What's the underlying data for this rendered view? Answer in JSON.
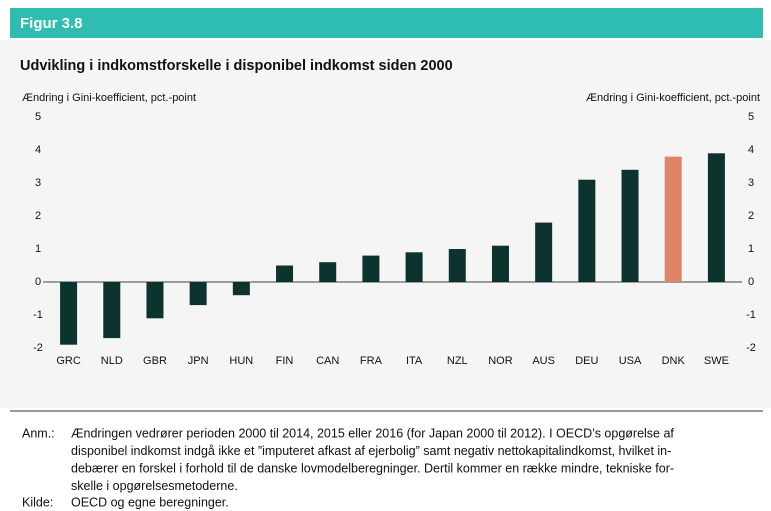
{
  "figure_label": "Figur 3.8",
  "chart_data": {
    "type": "bar",
    "title": "Udvikling i indkomstforskelle i disponibel indkomst siden 2000",
    "y_label": "Ændring i Gini-koefficient, pct.-point",
    "y2_label": "Ændring i Gini-koefficient, pct.-point",
    "categories": [
      "GRC",
      "NLD",
      "GBR",
      "JPN",
      "HUN",
      "FIN",
      "CAN",
      "FRA",
      "ITA",
      "NZL",
      "NOR",
      "AUS",
      "DEU",
      "USA",
      "DNK",
      "SWE"
    ],
    "values": [
      -1.9,
      -1.7,
      -1.1,
      -0.7,
      -0.4,
      0.5,
      0.6,
      0.8,
      0.9,
      1.0,
      1.1,
      1.8,
      3.1,
      3.4,
      3.8,
      3.9
    ],
    "colors": [
      "#0c332d",
      "#0c332d",
      "#0c332d",
      "#0c332d",
      "#0c332d",
      "#0c332d",
      "#0c332d",
      "#0c332d",
      "#0c332d",
      "#0c332d",
      "#0c332d",
      "#0c332d",
      "#0c332d",
      "#0c332d",
      "#df8466",
      "#0c332d"
    ],
    "ylim": [
      -2,
      5
    ],
    "yticks": [
      -2,
      -1,
      0,
      1,
      2,
      3,
      4,
      5
    ],
    "y2lim": [
      -2,
      5
    ],
    "y2ticks": [
      -2,
      -1,
      0,
      1,
      2,
      3,
      4,
      5
    ],
    "grid": false
  },
  "note": {
    "label": "Anm.:",
    "lines": [
      "Ændringen vedrører perioden 2000 til 2014, 2015 eller 2016 (for Japan 2000 til 2012). I OECD’s opgørelse af",
      "disponibel indkomst indgå ikke et ”imputeret afkast af ejerbolig” samt negativ nettokapitalindkomst, hvilket in-",
      "debærer en forskel i forhold til de danske lovmodelberegninger. Dertil kommer en række mindre, tekniske for-",
      "skelle i opgørelsesmetoderne."
    ]
  },
  "source": {
    "label": "Kilde:",
    "text": "OECD og egne beregninger."
  }
}
